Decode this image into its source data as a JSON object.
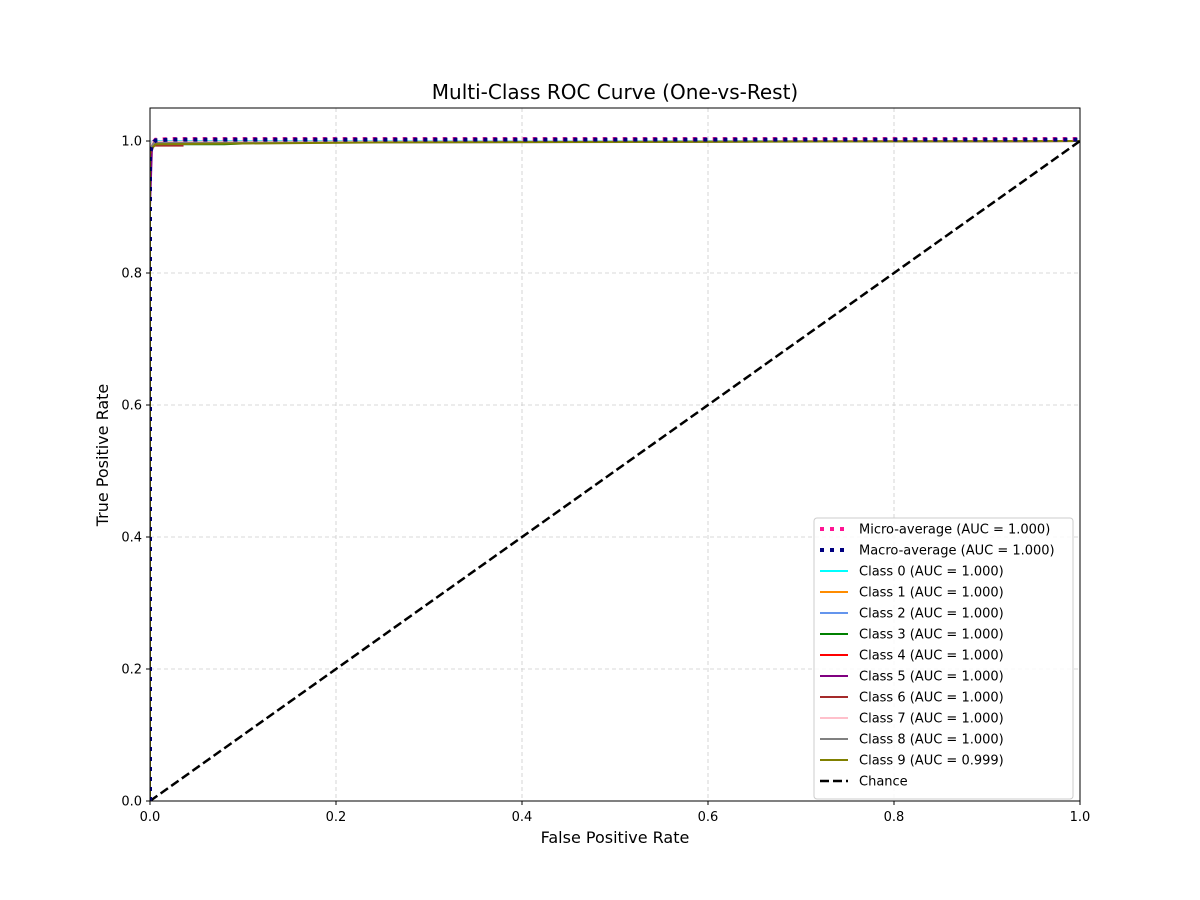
{
  "chart_data": {
    "type": "line",
    "title": "Multi-Class ROC Curve (One-vs-Rest)",
    "xlabel": "False Positive Rate",
    "ylabel": "True Positive Rate",
    "xlim": [
      0.0,
      1.0
    ],
    "ylim": [
      0.0,
      1.05
    ],
    "x_ticks": [
      "0.0",
      "0.2",
      "0.4",
      "0.6",
      "0.8",
      "1.0"
    ],
    "y_ticks": [
      "0.0",
      "0.2",
      "0.4",
      "0.6",
      "0.8",
      "1.0"
    ],
    "grid": true,
    "legend_position": "lower-right",
    "series": [
      {
        "name": "Micro-average (AUC = 1.000)",
        "color": "#ff1493",
        "style": "dotted-thick",
        "x": [
          0.0,
          0.0,
          0.002,
          0.006,
          0.02,
          1.0
        ],
        "y": [
          0.0,
          0.985,
          0.995,
          1.002,
          1.003,
          1.003
        ]
      },
      {
        "name": "Macro-average (AUC = 1.000)",
        "color": "#000080",
        "style": "dotted-thick",
        "x": [
          0.0,
          0.0,
          0.002,
          0.006,
          0.02,
          1.0
        ],
        "y": [
          0.0,
          0.98,
          0.994,
          1.001,
          1.002,
          1.002
        ]
      },
      {
        "name": "Class 0 (AUC = 1.000)",
        "color": "#00ffff",
        "style": "solid",
        "x": [
          0.0,
          0.0,
          0.003,
          1.0
        ],
        "y": [
          0.0,
          0.99,
          1.0,
          1.0
        ]
      },
      {
        "name": "Class 1 (AUC = 1.000)",
        "color": "#ff8c00",
        "style": "solid",
        "x": [
          0.0,
          0.0,
          0.004,
          0.05,
          1.0
        ],
        "y": [
          0.0,
          0.985,
          0.995,
          0.998,
          1.0
        ]
      },
      {
        "name": "Class 2 (AUC = 1.000)",
        "color": "#6495ed",
        "style": "solid",
        "x": [
          0.0,
          0.0,
          0.005,
          1.0
        ],
        "y": [
          0.0,
          0.99,
          0.998,
          1.0
        ]
      },
      {
        "name": "Class 3 (AUC = 1.000)",
        "color": "#008000",
        "style": "solid",
        "x": [
          0.0,
          0.0,
          0.005,
          0.08,
          0.13,
          1.0
        ],
        "y": [
          0.0,
          0.985,
          0.995,
          0.995,
          0.998,
          1.0
        ]
      },
      {
        "name": "Class 4 (AUC = 1.000)",
        "color": "#ff0000",
        "style": "solid",
        "x": [
          0.0,
          0.0,
          0.004,
          1.0
        ],
        "y": [
          0.0,
          0.99,
          0.998,
          1.0
        ]
      },
      {
        "name": "Class 5 (AUC = 1.000)",
        "color": "#800080",
        "style": "solid",
        "x": [
          0.0,
          0.0,
          0.002,
          0.004,
          1.0
        ],
        "y": [
          0.0,
          0.9,
          0.985,
          0.998,
          1.0
        ]
      },
      {
        "name": "Class 6 (AUC = 1.000)",
        "color": "#a52a2a",
        "style": "solid",
        "x": [
          0.0,
          0.0,
          0.004,
          0.035,
          0.035,
          1.0
        ],
        "y": [
          0.0,
          0.98,
          0.993,
          0.993,
          0.998,
          1.0
        ]
      },
      {
        "name": "Class 7 (AUC = 1.000)",
        "color": "#ffc0cb",
        "style": "solid",
        "x": [
          0.0,
          0.0,
          0.003,
          1.0
        ],
        "y": [
          0.0,
          0.99,
          0.999,
          1.0
        ]
      },
      {
        "name": "Class 8 (AUC = 1.000)",
        "color": "#808080",
        "style": "solid",
        "x": [
          0.0,
          0.0,
          0.004,
          1.0
        ],
        "y": [
          0.0,
          0.988,
          0.997,
          1.0
        ]
      },
      {
        "name": "Class 9 (AUC = 0.999)",
        "color": "#808000",
        "style": "solid",
        "x": [
          0.0,
          0.0,
          0.006,
          0.25,
          1.0
        ],
        "y": [
          0.0,
          0.985,
          0.995,
          0.998,
          1.0
        ]
      },
      {
        "name": "Chance",
        "color": "#000000",
        "style": "dashed",
        "x": [
          0.0,
          1.0
        ],
        "y": [
          0.0,
          1.0
        ]
      }
    ]
  }
}
